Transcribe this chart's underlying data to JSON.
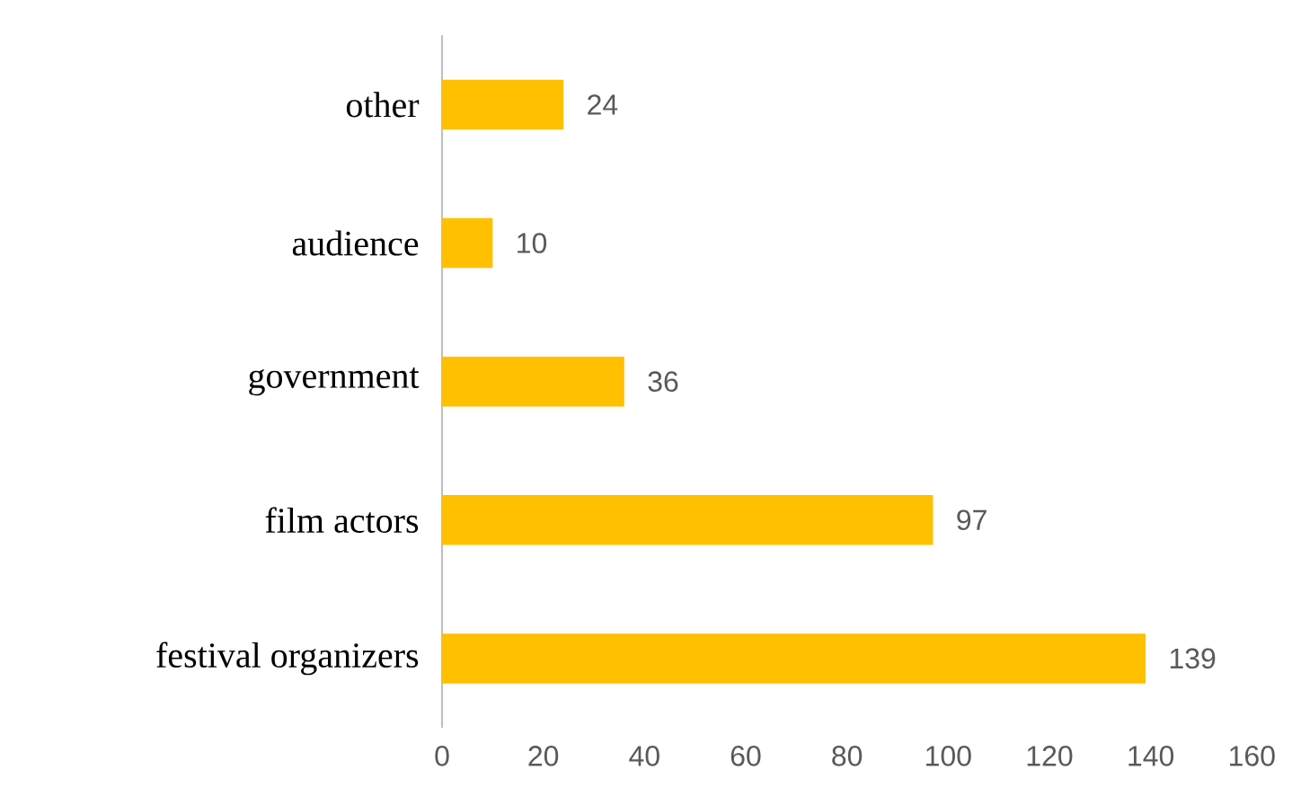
{
  "chart_data": {
    "type": "bar",
    "orientation": "horizontal",
    "categories": [
      "other",
      "audience",
      "government",
      "film actors",
      "festival organizers"
    ],
    "values": [
      24,
      10,
      36,
      97,
      139
    ],
    "color": "#ffc000",
    "xlim": [
      0,
      160
    ],
    "xticks": [
      0,
      20,
      40,
      60,
      80,
      100,
      120,
      140,
      160
    ],
    "grid": false,
    "data_labels": true
  }
}
